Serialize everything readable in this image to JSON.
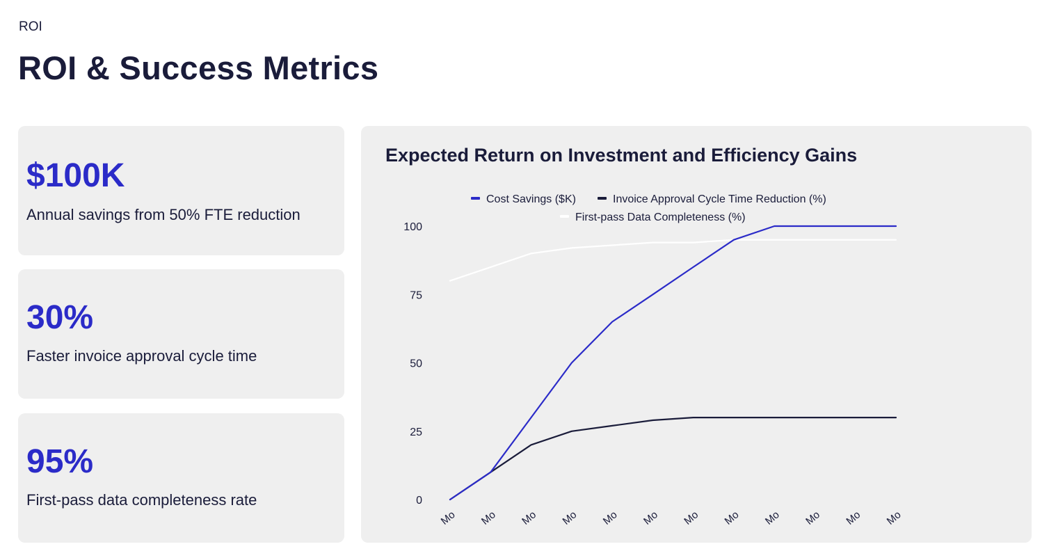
{
  "header": {
    "eyebrow": "ROI",
    "title": "ROI & Success Metrics"
  },
  "kpis": [
    {
      "value": "$100K",
      "label": "Annual savings from 50% FTE reduction"
    },
    {
      "value": "30%",
      "label": "Faster invoice approval cycle time"
    },
    {
      "value": "95%",
      "label": "First-pass data completeness rate"
    }
  ],
  "colors": {
    "accent": "#2b2bc8",
    "dark": "#1a1c3a",
    "card_bg": "#efefef",
    "light_series": "#ffffff"
  },
  "chart_data": {
    "type": "line",
    "title": "Expected Return on Investment and Efficiency Gains",
    "xlabel": "",
    "ylabel": "",
    "ylim": [
      0,
      100
    ],
    "yticks": [
      0,
      25,
      50,
      75,
      100
    ],
    "grid": false,
    "legend_position": "top-center",
    "categories": [
      "Mo",
      "Mo",
      "Mo",
      "Mo",
      "Mo",
      "Mo",
      "Mo",
      "Mo",
      "Mo",
      "Mo",
      "Mo",
      "Mo"
    ],
    "series": [
      {
        "name": "Cost Savings ($K)",
        "color": "#2b2bc8",
        "values": [
          0,
          10,
          30,
          50,
          65,
          75,
          85,
          95,
          100,
          100,
          100,
          100
        ]
      },
      {
        "name": "Invoice Approval Cycle Time Reduction (%)",
        "color": "#1a1c3a",
        "values": [
          0,
          10,
          20,
          25,
          27,
          29,
          30,
          30,
          30,
          30,
          30,
          30
        ]
      },
      {
        "name": "First-pass Data Completeness (%)",
        "color": "#ffffff",
        "values": [
          80,
          85,
          90,
          92,
          93,
          94,
          94,
          95,
          95,
          95,
          95,
          95
        ]
      }
    ]
  }
}
